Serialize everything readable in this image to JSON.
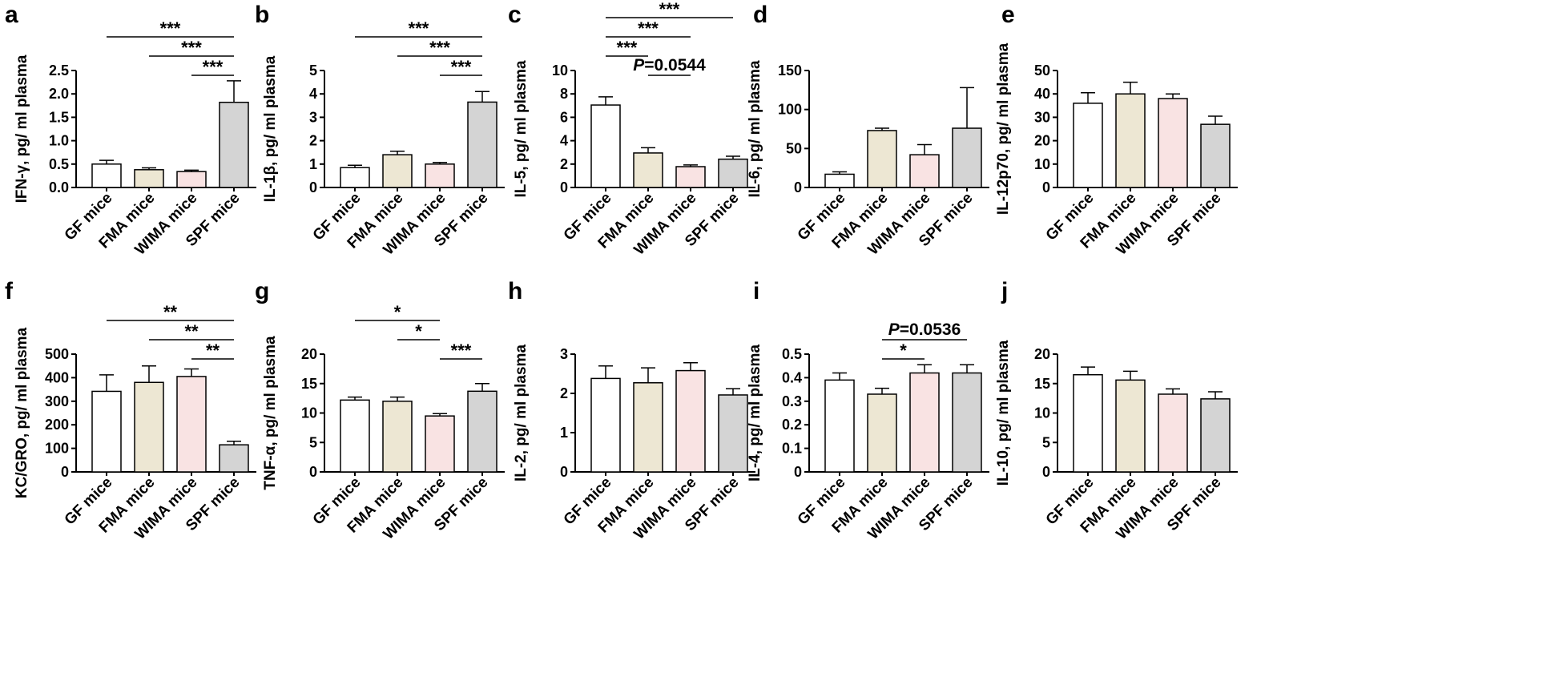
{
  "figure": {
    "category_labels": [
      "GF mice",
      "FMA mice",
      "WIMA mice",
      "SPF mice"
    ],
    "bar_colors": [
      "#ffffff",
      "#ede7d3",
      "#f9e3e3",
      "#d4d4d4"
    ]
  },
  "chart_data": [
    {
      "panel": "a",
      "type": "bar",
      "ylabel": "IFN-γ, pg/ ml plasma",
      "ylim": [
        0,
        2.5
      ],
      "yticks": [
        0,
        0.5,
        1.0,
        1.5,
        2.0,
        2.5
      ],
      "ytick_labels": [
        "0.0",
        "0.5",
        "1.0",
        "1.5",
        "2.0",
        "2.5"
      ],
      "values": [
        0.5,
        0.38,
        0.34,
        1.82
      ],
      "errors": [
        0.08,
        0.04,
        0.03,
        0.46
      ],
      "annotations": [
        {
          "from": 0,
          "to": 3,
          "label": "***"
        },
        {
          "from": 1,
          "to": 3,
          "label": "***"
        },
        {
          "from": 2,
          "to": 3,
          "label": "***"
        }
      ]
    },
    {
      "panel": "b",
      "type": "bar",
      "ylabel": "IL-1β, pg/ ml plasma",
      "ylim": [
        0,
        5
      ],
      "yticks": [
        0,
        1,
        2,
        3,
        4,
        5
      ],
      "ytick_labels": [
        "0",
        "1",
        "2",
        "3",
        "4",
        "5"
      ],
      "values": [
        0.85,
        1.4,
        1.0,
        3.65
      ],
      "errors": [
        0.1,
        0.15,
        0.07,
        0.45
      ],
      "annotations": [
        {
          "from": 0,
          "to": 3,
          "label": "***"
        },
        {
          "from": 1,
          "to": 3,
          "label": "***"
        },
        {
          "from": 2,
          "to": 3,
          "label": "***"
        }
      ]
    },
    {
      "panel": "c",
      "type": "bar",
      "ylabel": "IL-5, pg/ ml plasma",
      "ylim": [
        0,
        10
      ],
      "yticks": [
        0,
        2,
        4,
        6,
        8,
        10
      ],
      "ytick_labels": [
        "0",
        "2",
        "4",
        "6",
        "8",
        "10"
      ],
      "values": [
        7.05,
        2.95,
        1.78,
        2.42
      ],
      "errors": [
        0.7,
        0.45,
        0.15,
        0.25
      ],
      "annotations": [
        {
          "from": 0,
          "to": 3,
          "label": "***"
        },
        {
          "from": 0,
          "to": 2,
          "label": "***"
        },
        {
          "from": 0,
          "to": 1,
          "label": "***"
        },
        {
          "from": 1,
          "to": 2,
          "label": "P=0.0544",
          "p_value": "=0.0544"
        }
      ]
    },
    {
      "panel": "d",
      "type": "bar",
      "ylabel": "IL-6, pg/ ml plasma",
      "ylim": [
        0,
        150
      ],
      "yticks": [
        0,
        50,
        100,
        150
      ],
      "ytick_labels": [
        "0",
        "50",
        "100",
        "150"
      ],
      "values": [
        17,
        73,
        42,
        76
      ],
      "errors": [
        3,
        3,
        13,
        52
      ],
      "annotations": []
    },
    {
      "panel": "e",
      "type": "bar",
      "ylabel": "IL-12p70, pg/ ml plasma",
      "ylim": [
        0,
        50
      ],
      "yticks": [
        0,
        10,
        20,
        30,
        40,
        50
      ],
      "ytick_labels": [
        "0",
        "10",
        "20",
        "30",
        "40",
        "50"
      ],
      "values": [
        36,
        40,
        38,
        27
      ],
      "errors": [
        4.5,
        5,
        2,
        3.5
      ],
      "annotations": []
    },
    {
      "panel": "f",
      "type": "bar",
      "ylabel": "KC/GRO, pg/ ml plasma",
      "ylim": [
        0,
        500
      ],
      "yticks": [
        0,
        100,
        200,
        300,
        400,
        500
      ],
      "ytick_labels": [
        "0",
        "100",
        "200",
        "300",
        "400",
        "500"
      ],
      "values": [
        342,
        380,
        405,
        115
      ],
      "errors": [
        70,
        70,
        32,
        15
      ],
      "annotations": [
        {
          "from": 0,
          "to": 3,
          "label": "**"
        },
        {
          "from": 1,
          "to": 3,
          "label": "**"
        },
        {
          "from": 2,
          "to": 3,
          "label": "**"
        }
      ]
    },
    {
      "panel": "g",
      "type": "bar",
      "ylabel": "TNF-α, pg/ ml plasma",
      "ylim": [
        0,
        20
      ],
      "yticks": [
        0,
        5,
        10,
        15,
        20
      ],
      "ytick_labels": [
        "0",
        "5",
        "10",
        "15",
        "20"
      ],
      "values": [
        12.2,
        12.0,
        9.5,
        13.7
      ],
      "errors": [
        0.5,
        0.7,
        0.4,
        1.3
      ],
      "annotations": [
        {
          "from": 0,
          "to": 2,
          "label": "*"
        },
        {
          "from": 1,
          "to": 2,
          "label": "*"
        },
        {
          "from": 2,
          "to": 3,
          "label": "***"
        }
      ]
    },
    {
      "panel": "h",
      "type": "bar",
      "ylabel": "IL-2, pg/ ml plasma",
      "ylim": [
        0,
        3
      ],
      "yticks": [
        0,
        1,
        2,
        3
      ],
      "ytick_labels": [
        "0",
        "1",
        "2",
        "3"
      ],
      "values": [
        2.38,
        2.27,
        2.58,
        1.96
      ],
      "errors": [
        0.32,
        0.38,
        0.2,
        0.16
      ],
      "annotations": []
    },
    {
      "panel": "i",
      "type": "bar",
      "ylabel": "IL-4, pg/ ml plasma",
      "ylim": [
        0,
        0.5
      ],
      "yticks": [
        0,
        0.1,
        0.2,
        0.3,
        0.4,
        0.5
      ],
      "ytick_labels": [
        "0",
        "0.1",
        "0.2",
        "0.3",
        "0.4",
        "0.5"
      ],
      "values": [
        0.39,
        0.33,
        0.42,
        0.42
      ],
      "errors": [
        0.03,
        0.025,
        0.035,
        0.035
      ],
      "annotations": [
        {
          "from": 1,
          "to": 3,
          "label": "P=0.0536",
          "p_value": "=0.0536"
        },
        {
          "from": 1,
          "to": 2,
          "label": "*"
        }
      ]
    },
    {
      "panel": "j",
      "type": "bar",
      "ylabel": "IL-10, pg/ ml plasma",
      "ylim": [
        0,
        20
      ],
      "yticks": [
        0,
        5,
        10,
        15,
        20
      ],
      "ytick_labels": [
        "0",
        "5",
        "10",
        "15",
        "20"
      ],
      "values": [
        16.5,
        15.6,
        13.2,
        12.4
      ],
      "errors": [
        1.3,
        1.5,
        0.9,
        1.2
      ],
      "annotations": []
    }
  ]
}
